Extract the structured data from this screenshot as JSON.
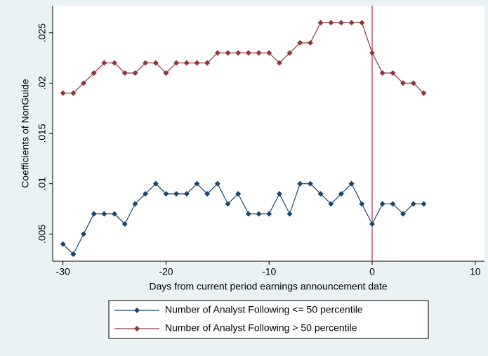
{
  "chart_data": {
    "type": "line",
    "x_label": "Days from current period earnings announcement date",
    "y_label": "Coefficients of NonGuide",
    "x": [
      -30,
      -29,
      -28,
      -27,
      -26,
      -25,
      -24,
      -23,
      -22,
      -21,
      -20,
      -19,
      -18,
      -17,
      -16,
      -15,
      -14,
      -13,
      -12,
      -11,
      -10,
      -9,
      -8,
      -7,
      -6,
      -5,
      -4,
      -3,
      -2,
      -1,
      0,
      1,
      2,
      3,
      4,
      5
    ],
    "series": [
      {
        "name": "Number of Analyst Following <= 50 percentile",
        "color": "#1a476f",
        "values": [
          0.004,
          0.003,
          0.005,
          0.007,
          0.007,
          0.007,
          0.006,
          0.008,
          0.009,
          0.01,
          0.009,
          0.009,
          0.009,
          0.01,
          0.009,
          0.01,
          0.008,
          0.009,
          0.007,
          0.007,
          0.007,
          0.009,
          0.007,
          0.01,
          0.01,
          0.009,
          0.008,
          0.009,
          0.01,
          0.008,
          0.006,
          0.008,
          0.008,
          0.007,
          0.008,
          0.008
        ]
      },
      {
        "name": "Number of Analyst Following > 50 percentile",
        "color": "#90353b",
        "values": [
          0.019,
          0.019,
          0.02,
          0.021,
          0.022,
          0.022,
          0.021,
          0.021,
          0.022,
          0.022,
          0.021,
          0.022,
          0.022,
          0.022,
          0.022,
          0.023,
          0.023,
          0.023,
          0.023,
          0.023,
          0.023,
          0.022,
          0.023,
          0.024,
          0.024,
          0.026,
          0.026,
          0.026,
          0.026,
          0.026,
          0.023,
          0.021,
          0.021,
          0.02,
          0.02,
          0.019
        ]
      }
    ],
    "xlim": [
      -31,
      10.9
    ],
    "xticks": [
      -30,
      -20,
      -10,
      0,
      10
    ],
    "ylim": [
      0.0023,
      0.0277
    ],
    "yticks": [
      {
        "value": 0.005,
        "label": ".005"
      },
      {
        "value": 0.01,
        "label": ".01"
      },
      {
        "value": 0.015,
        "label": ".015"
      },
      {
        "value": 0.02,
        "label": ".02"
      },
      {
        "value": 0.025,
        "label": ".025"
      }
    ],
    "xline": 0,
    "xline_color": "#a0345a",
    "legend": "bottom"
  }
}
